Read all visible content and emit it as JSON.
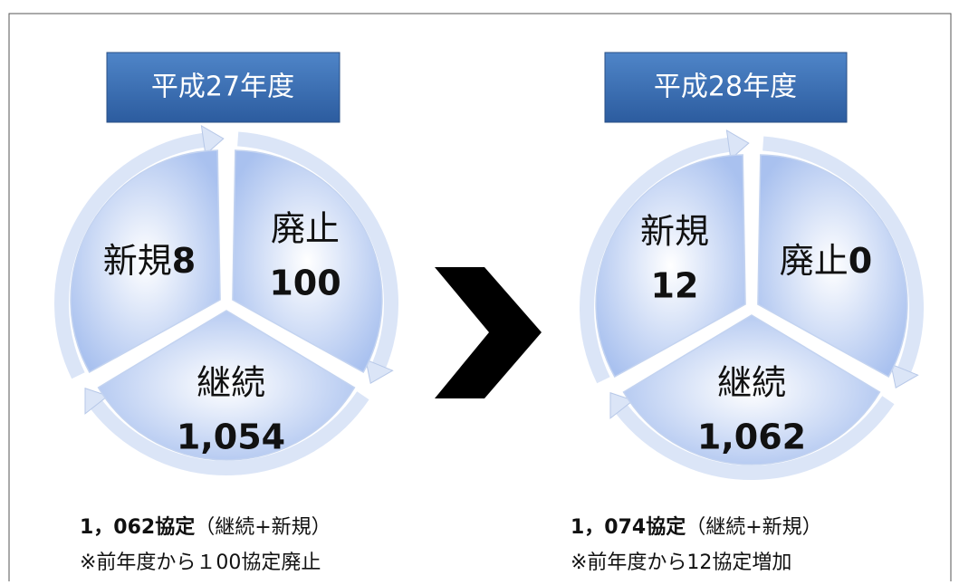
{
  "panels": [
    {
      "title": "平成27年度",
      "segments": [
        {
          "label": "新規",
          "value": "8"
        },
        {
          "label": "廃止",
          "value": "100"
        },
        {
          "label": "継続",
          "value": "1,054"
        }
      ],
      "total": "1，062協定",
      "total_note": "（継続+新規）",
      "note": "※前年度から１00協定廃止"
    },
    {
      "title": "平成28年度",
      "segments": [
        {
          "label": "新規",
          "value": "12"
        },
        {
          "label": "廃止",
          "value": "0"
        },
        {
          "label": "継続",
          "value": "1,062"
        }
      ],
      "total": "1，074協定",
      "total_note": "（継続+新規）",
      "note": "※前年度から12協定増加"
    }
  ]
}
